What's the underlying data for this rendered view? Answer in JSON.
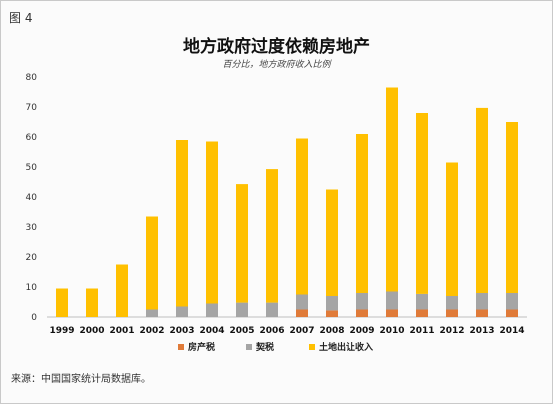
{
  "figure_label": "图 4",
  "title": "地方政府过度依赖房地产",
  "subtitle": "百分比，地方政府收入比例",
  "source": "来源：中国国家统计局数据库。",
  "chart_data": {
    "type": "bar",
    "stacked": true,
    "categories": [
      "1999",
      "2000",
      "2001",
      "2002",
      "2003",
      "2004",
      "2005",
      "2006",
      "2007",
      "2008",
      "2009",
      "2010",
      "2011",
      "2012",
      "2013",
      "2014"
    ],
    "series": [
      {
        "name": "房产税",
        "color": "#e07b39",
        "values": [
          0,
          0,
          0,
          0,
          0,
          0,
          0,
          0,
          2.5,
          2.2,
          2.5,
          2.5,
          2.5,
          2.5,
          2.5,
          2.5
        ]
      },
      {
        "name": "契税",
        "color": "#a5a5a5",
        "values": [
          0,
          0,
          0,
          2.5,
          3.5,
          4.5,
          4.8,
          4.8,
          5.0,
          4.8,
          5.5,
          6.0,
          5.2,
          4.5,
          5.5,
          5.5
        ]
      },
      {
        "name": "土地出让收入",
        "color": "#ffc000",
        "values": [
          9.5,
          9.5,
          17.5,
          31.0,
          55.5,
          54.0,
          39.5,
          44.5,
          52.0,
          35.5,
          53.0,
          68.0,
          60.3,
          44.5,
          61.7,
          57.0
        ]
      }
    ],
    "ylim": [
      0,
      80
    ],
    "yticks": [
      0,
      10,
      20,
      30,
      40,
      50,
      60,
      70,
      80
    ],
    "grid": false,
    "legend": "bottom"
  }
}
